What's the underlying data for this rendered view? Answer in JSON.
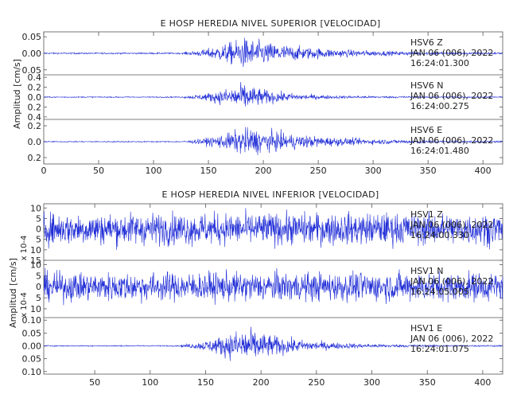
{
  "chart_data": [
    {
      "type": "line",
      "title": "E HOSP HEREDIA NIVEL SUPERIOR [VELOCIDAD]",
      "ylabel": "Amplitud [cm/s]",
      "xlim": [
        0,
        418
      ],
      "xticks": [
        0,
        50,
        100,
        150,
        200,
        250,
        300,
        350,
        400
      ],
      "color": "#1f2cd6",
      "series": [
        {
          "station": "HSV6",
          "component": "Z",
          "date": "JAN 06 (006), 2022",
          "time": "16:24:01.300",
          "ylim": [
            -0.065,
            0.065
          ],
          "yticks": [
            0.05,
            0.0,
            -0.05
          ],
          "ytick_labels": [
            "0.05",
            "0.00",
            "0.05"
          ],
          "envelope": {
            "noise": 0.002,
            "onset": 128,
            "peak_time": 182,
            "peak_amp": 0.068,
            "decay": 55
          }
        },
        {
          "station": "HSV6",
          "component": "N",
          "date": "JAN 06 (006), 2022",
          "time": "16:24:00.275",
          "ylim": [
            -0.45,
            0.45
          ],
          "yticks": [
            0.4,
            0.2,
            0.0,
            -0.2,
            -0.4
          ],
          "ytick_labels": [
            "0.4",
            "0.2",
            "0.0",
            "0.2",
            "0.4"
          ],
          "envelope": {
            "noise": 0.01,
            "onset": 128,
            "peak_time": 182,
            "peak_amp": 0.4,
            "decay": 28
          }
        },
        {
          "station": "HSV6",
          "component": "E",
          "date": "JAN 06 (006), 2022",
          "time": "16:24:01.480",
          "ylim": [
            -0.28,
            0.28
          ],
          "yticks": [
            0.2,
            0.0,
            -0.2
          ],
          "ytick_labels": [
            "0.2",
            "0.0",
            "0.2"
          ],
          "envelope": {
            "noise": 0.006,
            "onset": 128,
            "peak_time": 185,
            "peak_amp": 0.26,
            "decay": 60
          }
        }
      ]
    },
    {
      "type": "line",
      "title": "E HOSP HEREDIA NIVEL INFERIOR [VELOCIDAD]",
      "ylabel": "Amplitud [cm/s]",
      "xlim": [
        4,
        418
      ],
      "xticks": [
        50,
        100,
        150,
        200,
        250,
        300,
        350,
        400
      ],
      "color": "#1f2cd6",
      "series": [
        {
          "station": "HSV1",
          "component": "Z",
          "date": "JAN 06 (006), 2022",
          "time": "16:24:00.330",
          "yscale_label": "x 10-4",
          "ylim": [
            -15,
            12
          ],
          "yticks": [
            10,
            5,
            0,
            -5,
            -10,
            -15
          ],
          "ytick_labels": [
            "10",
            "5",
            "0",
            "5",
            "10",
            "15"
          ],
          "envelope": {
            "noise": 7,
            "onset": 0,
            "peak_time": 0,
            "peak_amp": 0,
            "decay": 1
          }
        },
        {
          "station": "HSV1",
          "component": "N",
          "date": "JAN 06 (006), 2022",
          "time": "16:24:05.005",
          "yscale_label": "x 10-4",
          "ylim": [
            -14,
            12
          ],
          "yticks": [
            10,
            5,
            0,
            -5,
            -10
          ],
          "ytick_labels": [
            "10",
            "5",
            "0",
            "5",
            "10"
          ],
          "envelope": {
            "noise": 6,
            "onset": 0,
            "peak_time": 0,
            "peak_amp": 0,
            "decay": 1
          }
        },
        {
          "station": "HSV1",
          "component": "E",
          "date": "JAN 06 (006), 2022",
          "time": "16:24:01.075",
          "ylim": [
            -0.11,
            0.11
          ],
          "yticks": [
            0.1,
            0.05,
            0.0,
            -0.05,
            -0.1
          ],
          "ytick_labels": [
            "0.10",
            "0.05",
            "0.00",
            "0.05",
            "0.10"
          ],
          "envelope": {
            "noise": 0.002,
            "onset": 128,
            "peak_time": 185,
            "peak_amp": 0.105,
            "decay": 40
          }
        }
      ]
    }
  ]
}
